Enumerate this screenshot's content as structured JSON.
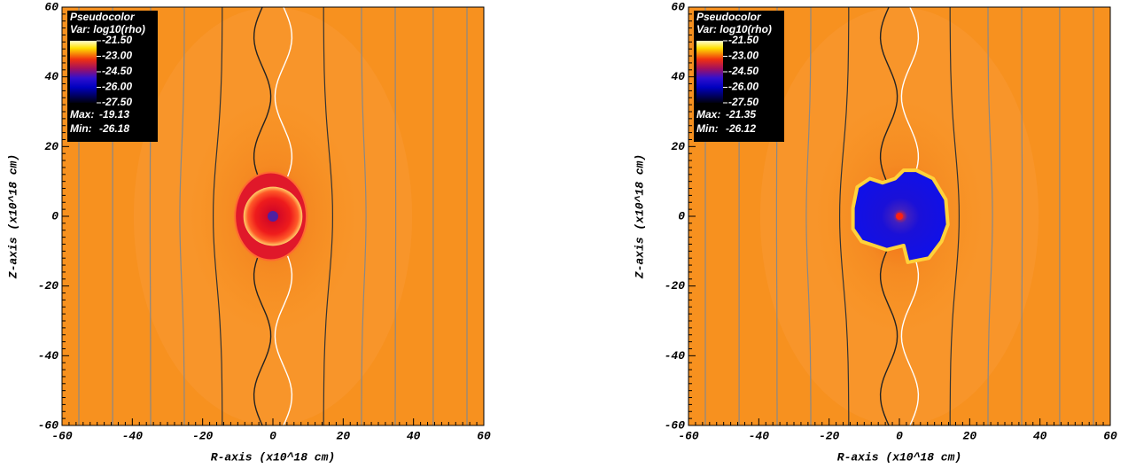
{
  "chart_data": [
    {
      "type": "heatmap",
      "xlabel": "R-axis (x10^18 cm)",
      "ylabel": "Z-axis (x10^18 cm)",
      "xlim": [
        -60,
        60
      ],
      "xticks": [
        -60,
        -40,
        -20,
        0,
        20,
        40,
        60
      ],
      "ylim": [
        -60,
        60
      ],
      "yticks": [
        -60,
        -40,
        -20,
        0,
        20,
        40,
        60
      ],
      "legend": {
        "title": "Pseudocolor",
        "variable": "Var: log10(rho)",
        "ticks": [
          {
            "value": -21.5,
            "label": "-21.50"
          },
          {
            "value": -23,
            "label": "-23.00"
          },
          {
            "value": -24.5,
            "label": "-24.50"
          },
          {
            "value": -26,
            "label": "-26.00"
          },
          {
            "value": -27.5,
            "label": "-27.50"
          }
        ],
        "max_label": "Max:",
        "max": -19.13,
        "min_label": "Min:",
        "min": -26.18
      }
    },
    {
      "type": "heatmap",
      "xlabel": "R-axis (x10^18 cm)",
      "ylabel": "Z-axis (x10^18 cm)",
      "xlim": [
        -60,
        60
      ],
      "xticks": [
        -60,
        -40,
        -20,
        0,
        20,
        40,
        60
      ],
      "ylim": [
        -60,
        60
      ],
      "yticks": [
        -60,
        -40,
        -20,
        0,
        20,
        40,
        60
      ],
      "legend": {
        "title": "Pseudocolor",
        "variable": "Var: log10(rho)",
        "ticks": [
          {
            "value": -21.5,
            "label": "-21.50"
          },
          {
            "value": -23,
            "label": "-23.00"
          },
          {
            "value": -24.5,
            "label": "-24.50"
          },
          {
            "value": -26,
            "label": "-26.00"
          },
          {
            "value": -27.5,
            "label": "-27.50"
          }
        ],
        "max_label": "Max:",
        "max": -21.35,
        "min_label": "Min:",
        "min": -26.12
      }
    }
  ]
}
